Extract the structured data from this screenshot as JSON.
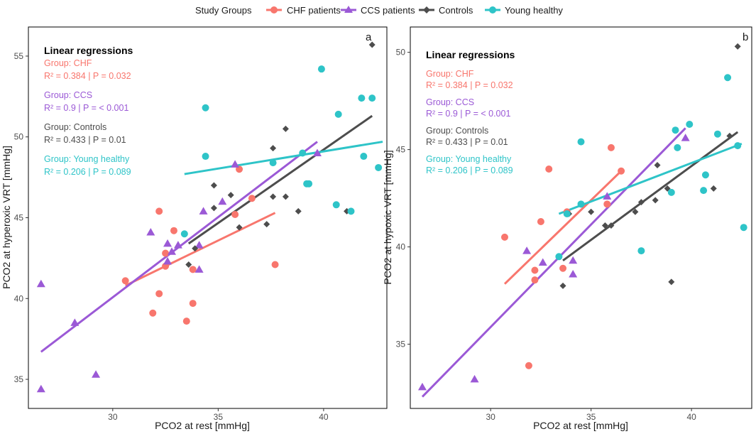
{
  "legend": {
    "title": "Study Groups",
    "entries": [
      {
        "label": "CHF patients",
        "color": "#F8766D",
        "shape": "circle"
      },
      {
        "label": "CCS patients",
        "color": "#9B59D6",
        "shape": "triangle"
      },
      {
        "label": "Controls",
        "color": "#4D4D4D",
        "shape": "diamond"
      },
      {
        "label": "Young healthy",
        "color": "#2EC4C8",
        "shape": "circle"
      }
    ]
  },
  "chart_data": [
    {
      "type": "scatter",
      "panel": "a",
      "xlabel": "PCO2 at rest [mmHg]",
      "ylabel": "PCO2 at hyperoxic VRT [mmHg]",
      "xlim": [
        26.0,
        43.0
      ],
      "ylim": [
        33.2,
        56.8
      ],
      "xticks": [
        30,
        35,
        40
      ],
      "yticks": [
        35,
        40,
        45,
        50,
        55
      ],
      "annotation": {
        "title": "Linear regressions",
        "groups": [
          {
            "group_line": "Group: CHF",
            "stats_line": "R² =  0.384  | P =  0.032",
            "color": "#F8766D"
          },
          {
            "group_line": "Group: CCS",
            "stats_line": "R² =  0.9  | P =  < 0.001",
            "color": "#9B59D6"
          },
          {
            "group_line": "Group: Controls",
            "stats_line": "R² =  0.433  | P =  0.01",
            "color": "#4D4D4D"
          },
          {
            "group_line": "Group: Young healthy",
            "stats_line": "R² =  0.206  | P =  0.089",
            "color": "#2EC4C8"
          }
        ]
      },
      "series": [
        {
          "name": "CHF patients",
          "shape": "circle",
          "color": "#F8766D",
          "points": [
            [
              30.6,
              41.1
            ],
            [
              31.9,
              39.1
            ],
            [
              32.2,
              45.4
            ],
            [
              32.2,
              40.3
            ],
            [
              32.5,
              42.0
            ],
            [
              32.5,
              42.8
            ],
            [
              32.9,
              44.2
            ],
            [
              33.5,
              38.6
            ],
            [
              33.8,
              41.8
            ],
            [
              33.8,
              39.7
            ],
            [
              35.8,
              45.2
            ],
            [
              36.0,
              48.0
            ],
            [
              36.6,
              46.2
            ],
            [
              37.7,
              42.1
            ]
          ],
          "fit": [
            [
              30.6,
              40.8
            ],
            [
              37.7,
              45.3
            ]
          ]
        },
        {
          "name": "CCS patients",
          "shape": "triangle",
          "color": "#9B59D6",
          "points": [
            [
              26.6,
              40.9
            ],
            [
              26.6,
              34.4
            ],
            [
              28.2,
              38.5
            ],
            [
              29.2,
              35.3
            ],
            [
              31.8,
              44.1
            ],
            [
              32.6,
              43.4
            ],
            [
              32.6,
              42.3
            ],
            [
              32.8,
              42.9
            ],
            [
              33.1,
              43.3
            ],
            [
              34.1,
              43.3
            ],
            [
              34.1,
              41.8
            ],
            [
              34.3,
              45.4
            ],
            [
              35.2,
              46.0
            ],
            [
              35.8,
              48.3
            ],
            [
              39.7,
              49.0
            ]
          ],
          "fit": [
            [
              26.6,
              36.7
            ],
            [
              39.7,
              49.7
            ]
          ]
        },
        {
          "name": "Controls",
          "shape": "diamond",
          "color": "#4D4D4D",
          "points": [
            [
              33.6,
              42.1
            ],
            [
              33.9,
              43.1
            ],
            [
              34.8,
              45.6
            ],
            [
              34.8,
              47.0
            ],
            [
              35.6,
              46.4
            ],
            [
              36.0,
              44.4
            ],
            [
              37.3,
              44.6
            ],
            [
              37.6,
              49.3
            ],
            [
              37.6,
              46.3
            ],
            [
              38.2,
              50.5
            ],
            [
              38.2,
              46.3
            ],
            [
              38.8,
              45.4
            ],
            [
              41.1,
              45.4
            ],
            [
              42.3,
              55.7
            ]
          ],
          "fit": [
            [
              33.6,
              43.4
            ],
            [
              42.3,
              51.3
            ]
          ]
        },
        {
          "name": "Young healthy",
          "shape": "circle",
          "color": "#2EC4C8",
          "points": [
            [
              33.4,
              44.0
            ],
            [
              34.4,
              51.8
            ],
            [
              34.4,
              48.8
            ],
            [
              37.6,
              48.4
            ],
            [
              39.0,
              49.0
            ],
            [
              39.2,
              47.1
            ],
            [
              39.3,
              47.1
            ],
            [
              39.9,
              54.2
            ],
            [
              40.6,
              45.8
            ],
            [
              40.7,
              51.4
            ],
            [
              41.3,
              45.4
            ],
            [
              41.8,
              52.4
            ],
            [
              41.9,
              48.8
            ],
            [
              42.3,
              52.4
            ],
            [
              42.6,
              48.1
            ]
          ],
          "fit": [
            [
              33.4,
              47.7
            ],
            [
              42.8,
              49.7
            ]
          ]
        }
      ]
    },
    {
      "type": "scatter",
      "panel": "b",
      "xlabel": "PCO2 at rest [mmHg]",
      "ylabel": "PCO2 at hypoxic VRT [mmHg]",
      "xlim": [
        26.0,
        43.0
      ],
      "ylim": [
        31.7,
        51.3
      ],
      "xticks": [
        30,
        35,
        40
      ],
      "yticks": [
        35,
        40,
        45,
        50
      ],
      "annotation": {
        "title": "Linear regressions",
        "groups": [
          {
            "group_line": "Group: CHF",
            "stats_line": "R² =  0.384  | P =  0.032",
            "color": "#F8766D"
          },
          {
            "group_line": "Group: CCS",
            "stats_line": "R² =  0.9  | P =  < 0.001",
            "color": "#9B59D6"
          },
          {
            "group_line": "Group: Controls",
            "stats_line": "R² =  0.433  | P =  0.01",
            "color": "#4D4D4D"
          },
          {
            "group_line": "Group: Young healthy",
            "stats_line": "R² =  0.206  | P =  0.089",
            "color": "#2EC4C8"
          }
        ]
      },
      "series": [
        {
          "name": "CHF patients",
          "shape": "circle",
          "color": "#F8766D",
          "points": [
            [
              30.7,
              40.5
            ],
            [
              31.9,
              33.9
            ],
            [
              32.2,
              38.8
            ],
            [
              32.2,
              38.3
            ],
            [
              32.5,
              41.3
            ],
            [
              32.9,
              44.0
            ],
            [
              33.6,
              38.9
            ],
            [
              33.8,
              41.8
            ],
            [
              35.8,
              42.2
            ],
            [
              36.0,
              45.1
            ],
            [
              36.5,
              43.9
            ]
          ],
          "fit": [
            [
              30.7,
              38.1
            ],
            [
              36.5,
              43.9
            ]
          ]
        },
        {
          "name": "CCS patients",
          "shape": "triangle",
          "color": "#9B59D6",
          "points": [
            [
              26.6,
              32.8
            ],
            [
              29.2,
              33.2
            ],
            [
              31.8,
              39.8
            ],
            [
              32.6,
              39.2
            ],
            [
              34.1,
              39.3
            ],
            [
              34.1,
              38.6
            ],
            [
              35.8,
              42.6
            ],
            [
              39.7,
              45.6
            ]
          ],
          "fit": [
            [
              26.6,
              32.3
            ],
            [
              39.7,
              46.1
            ]
          ]
        },
        {
          "name": "Controls",
          "shape": "diamond",
          "color": "#4D4D4D",
          "points": [
            [
              33.6,
              38.0
            ],
            [
              33.9,
              41.7
            ],
            [
              35.0,
              41.8
            ],
            [
              35.7,
              41.1
            ],
            [
              36.0,
              41.1
            ],
            [
              37.2,
              41.8
            ],
            [
              37.5,
              42.3
            ],
            [
              38.2,
              42.4
            ],
            [
              38.3,
              44.2
            ],
            [
              38.8,
              43.0
            ],
            [
              39.0,
              38.2
            ],
            [
              41.1,
              43.0
            ],
            [
              41.9,
              45.7
            ],
            [
              42.3,
              50.3
            ]
          ],
          "fit": [
            [
              33.6,
              39.3
            ],
            [
              42.3,
              45.9
            ]
          ]
        },
        {
          "name": "Young healthy",
          "shape": "circle",
          "color": "#2EC4C8",
          "points": [
            [
              33.4,
              39.5
            ],
            [
              33.8,
              41.7
            ],
            [
              34.5,
              42.2
            ],
            [
              34.5,
              45.4
            ],
            [
              37.5,
              39.8
            ],
            [
              39.0,
              42.8
            ],
            [
              39.2,
              46.0
            ],
            [
              39.3,
              45.1
            ],
            [
              39.9,
              46.3
            ],
            [
              40.6,
              42.9
            ],
            [
              40.7,
              43.7
            ],
            [
              41.3,
              45.8
            ],
            [
              41.8,
              48.7
            ],
            [
              42.3,
              45.2
            ],
            [
              42.6,
              41.0
            ]
          ],
          "fit": [
            [
              33.4,
              41.7
            ],
            [
              42.5,
              45.3
            ]
          ]
        }
      ]
    }
  ]
}
